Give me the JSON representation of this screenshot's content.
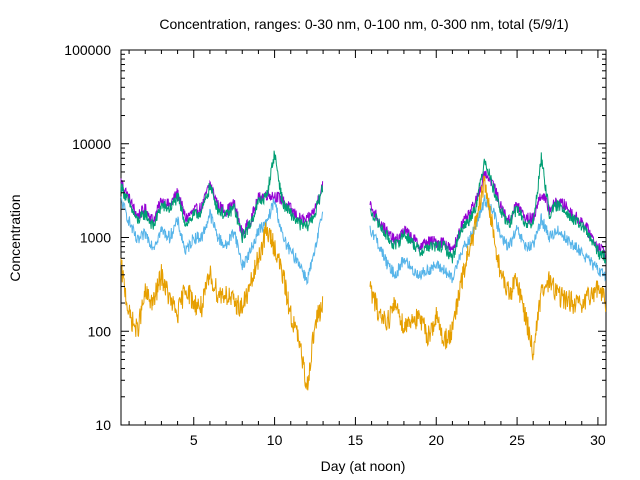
{
  "chart_data": {
    "type": "line",
    "title": "Concentration, ranges: 0-30 nm, 0-100 nm, 0-300 nm, total (5/9/1)",
    "xlabel": "Day (at noon)",
    "ylabel": "Concentration",
    "xlim": [
      0.5,
      30.5
    ],
    "ylim": [
      10,
      100000
    ],
    "yscale": "log",
    "grid": false,
    "legend": "none",
    "x_ticks": [
      5,
      10,
      15,
      20,
      25,
      30
    ],
    "x_tick_labels": [
      "5",
      "10",
      "15",
      "20",
      "25",
      "30"
    ],
    "y_ticks": [
      10,
      100,
      1000,
      10000,
      100000
    ],
    "y_tick_labels": [
      "10",
      "100",
      "1000",
      "10000",
      "100000"
    ],
    "gap": [
      13.0,
      15.9
    ],
    "series": [
      {
        "color": "#9400d3",
        "x": [
          0.5,
          1,
          1.5,
          2,
          2.5,
          3,
          3.5,
          4,
          4.5,
          5,
          5.5,
          6,
          6.5,
          7,
          7.5,
          8,
          8.5,
          9,
          9.5,
          10,
          10.5,
          11,
          11.5,
          12,
          12.5,
          13,
          15.9,
          16.5,
          17,
          17.5,
          18,
          18.5,
          19,
          19.5,
          20,
          20.5,
          21,
          21.5,
          22,
          22.5,
          23,
          23.5,
          24,
          24.5,
          25,
          25.5,
          26,
          26.5,
          27,
          27.5,
          28,
          28.5,
          29,
          29.5,
          30,
          30.5
        ],
        "y": [
          4000,
          2600,
          1700,
          2000,
          1500,
          2500,
          2200,
          3000,
          1600,
          1900,
          2100,
          3800,
          2200,
          1900,
          2300,
          1100,
          1500,
          2600,
          2900,
          2800,
          2500,
          2000,
          1600,
          1500,
          2000,
          3800,
          2200,
          1500,
          1100,
          900,
          1200,
          1000,
          800,
          900,
          900,
          900,
          700,
          1300,
          1700,
          2500,
          5000,
          3800,
          2100,
          1500,
          2300,
          1600,
          1600,
          3000,
          2000,
          2400,
          2200,
          1700,
          1500,
          1100,
          800,
          700
        ]
      },
      {
        "color": "#009e73",
        "x": [
          0.5,
          1,
          1.5,
          2,
          2.5,
          3,
          3.5,
          4,
          4.5,
          5,
          5.5,
          6,
          6.5,
          7,
          7.5,
          8,
          8.5,
          9,
          9.5,
          10,
          10.5,
          11,
          11.5,
          12,
          12.5,
          13,
          15.9,
          16.5,
          17,
          17.5,
          18,
          18.5,
          19,
          19.5,
          20,
          20.5,
          21,
          21.5,
          22,
          22.5,
          23,
          23.5,
          24,
          24.5,
          25,
          25.5,
          26,
          26.5,
          27,
          27.5,
          28,
          28.5,
          29,
          29.5,
          30,
          30.5
        ],
        "y": [
          3500,
          2300,
          1500,
          1800,
          1300,
          2200,
          2000,
          2700,
          1400,
          1700,
          1900,
          3500,
          2000,
          1700,
          2100,
          1000,
          1400,
          2400,
          2700,
          8000,
          2300,
          1800,
          1400,
          1300,
          1800,
          3500,
          2000,
          1350,
          1000,
          800,
          1100,
          900,
          700,
          800,
          800,
          800,
          600,
          1200,
          1500,
          2300,
          7000,
          3500,
          1900,
          1350,
          2100,
          1400,
          1400,
          7000,
          1800,
          2200,
          2000,
          1500,
          1350,
          1000,
          700,
          600
        ]
      },
      {
        "color": "#56b4e9",
        "x": [
          0.5,
          1,
          1.5,
          2,
          2.5,
          3,
          3.5,
          4,
          4.5,
          5,
          5.5,
          6,
          6.5,
          7,
          7.5,
          8,
          8.5,
          9,
          9.5,
          10,
          10.5,
          11,
          11.5,
          12,
          12.5,
          13,
          15.9,
          16.5,
          17,
          17.5,
          18,
          18.5,
          19,
          19.5,
          20,
          20.5,
          21,
          21.5,
          22,
          22.5,
          23,
          23.5,
          24,
          24.5,
          25,
          25.5,
          26,
          26.5,
          27,
          27.5,
          28,
          28.5,
          29,
          29.5,
          30,
          30.5
        ],
        "y": [
          2500,
          1500,
          900,
          1100,
          800,
          1200,
          1000,
          1500,
          700,
          1000,
          1000,
          1800,
          1000,
          800,
          1200,
          500,
          700,
          1200,
          1400,
          2500,
          1000,
          700,
          550,
          350,
          700,
          2000,
          1300,
          800,
          500,
          400,
          600,
          450,
          400,
          450,
          500,
          450,
          350,
          700,
          900,
          1400,
          2500,
          2000,
          1000,
          800,
          1200,
          800,
          800,
          1600,
          1000,
          1200,
          1000,
          800,
          700,
          550,
          450,
          400
        ]
      },
      {
        "color": "#e69f00",
        "x": [
          0.5,
          1,
          1.5,
          2,
          2.5,
          3,
          3.5,
          4,
          4.5,
          5,
          5.5,
          6,
          6.5,
          7,
          7.5,
          8,
          8.5,
          9,
          9.5,
          10,
          10.5,
          11,
          11.5,
          12,
          12.5,
          13,
          15.9,
          16.5,
          17,
          17.5,
          18,
          18.5,
          19,
          19.5,
          20,
          20.5,
          21,
          21.5,
          22,
          22.5,
          23,
          23.5,
          24,
          24.5,
          25,
          25.5,
          26,
          26.5,
          27,
          27.5,
          28,
          28.5,
          29,
          29.5,
          30,
          30.5
        ],
        "y": [
          500,
          150,
          100,
          250,
          200,
          400,
          220,
          150,
          300,
          200,
          180,
          400,
          250,
          250,
          200,
          180,
          300,
          600,
          1200,
          800,
          400,
          150,
          80,
          25,
          120,
          200,
          280,
          150,
          130,
          200,
          110,
          140,
          130,
          90,
          140,
          80,
          100,
          300,
          700,
          1500,
          4000,
          1200,
          400,
          250,
          350,
          150,
          60,
          250,
          350,
          250,
          220,
          200,
          180,
          240,
          300,
          200
        ]
      }
    ]
  }
}
